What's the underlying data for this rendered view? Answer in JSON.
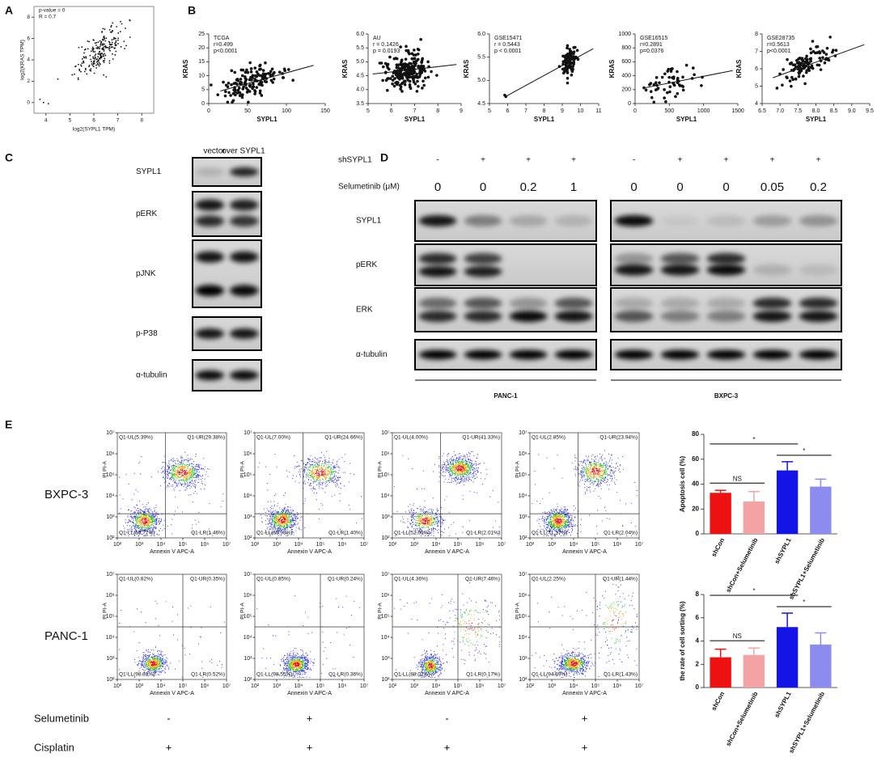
{
  "panels": {
    "A": {
      "label": "A",
      "texts": [
        "p-value = 0",
        "R = 0.7"
      ],
      "xlabel": "log2(SYPL1 TPM)",
      "ylabel": "log2(KRAS TPM)",
      "xlim": [
        3.5,
        8.5
      ],
      "xticks": [
        4,
        5,
        6,
        7,
        8
      ],
      "ylim": [
        -1,
        9
      ],
      "yticks": [
        0,
        2,
        4,
        6,
        8
      ]
    },
    "B": {
      "label": "B",
      "plots": [
        {
          "texts": [
            "TCGA",
            "r=0.499",
            "p<0.0001"
          ],
          "xlabel": "SYPL1",
          "ylabel": "KRAS",
          "xlim": [
            0,
            150
          ],
          "xticks": [
            0,
            50,
            100,
            150
          ],
          "ylim": [
            0,
            25
          ],
          "yticks": [
            0,
            5,
            10,
            15,
            20,
            25
          ]
        },
        {
          "texts": [
            "AU",
            "r = 0.1426",
            "p = 0.0193"
          ],
          "xlabel": "SYPL1",
          "ylabel": "KRAS",
          "xlim": [
            5,
            9
          ],
          "xticks": [
            5,
            6,
            7,
            8,
            9
          ],
          "ylim": [
            3.5,
            6
          ],
          "yticks": [
            3.5,
            {
              "value": 4,
              "label": "4.0"
            },
            4.5,
            {
              "value": 5,
              "label": "5.0"
            },
            5.5,
            {
              "value": 6,
              "label": "6.0"
            }
          ]
        },
        {
          "texts": [
            "GSE15471",
            "r = 0.5443",
            "p < 0.0001"
          ],
          "xlabel": "SYPL1",
          "ylabel": "KRAS",
          "xlim": [
            5,
            11
          ],
          "xticks": [
            5,
            6,
            7,
            8,
            9,
            10,
            11
          ],
          "ylim": [
            4.5,
            6
          ],
          "yticks": [
            4.5,
            {
              "value": 5,
              "label": "5.0"
            },
            5.5,
            {
              "value": 6,
              "label": "6.0"
            }
          ]
        },
        {
          "texts": [
            "GSE16515",
            "r=0.2891",
            "p=0.0376"
          ],
          "xlabel": "SYPL1",
          "ylabel": "KRAS",
          "xlim": [
            0,
            1500
          ],
          "xticks": [
            0,
            500,
            1000,
            1500
          ],
          "ylim": [
            0,
            1000
          ],
          "yticks": [
            0,
            200,
            400,
            600,
            800,
            1000
          ]
        },
        {
          "texts": [
            "GSE28735",
            "r=0.5613",
            "p<0.0001"
          ],
          "xlabel": "SYPL1",
          "ylabel": "KRAS",
          "xlim": [
            6.5,
            9.5
          ],
          "xticks": [
            6.5,
            {
              "value": 7,
              "label": "7.0"
            },
            7.5,
            {
              "value": 8,
              "label": "8.0"
            },
            8.5,
            {
              "value": 9,
              "label": "9.0"
            },
            9.5
          ],
          "ylim": [
            4,
            8
          ],
          "yticks": [
            4,
            5,
            6,
            7,
            8
          ]
        }
      ]
    },
    "C": {
      "label": "C",
      "columns": [
        "vector",
        "over SYPL1"
      ],
      "rows": [
        "SYPL1",
        "pERK",
        "pJNK",
        "p-P38",
        "α-tubulin"
      ]
    },
    "D": {
      "label": "D",
      "shsypl1_label": "shSYPL1",
      "shsypl1": [
        "-",
        "+",
        "+",
        "+",
        "-",
        "+",
        "+",
        "+",
        "+"
      ],
      "selumetinib_label": "Selumetinib (μM)",
      "selumetinib": [
        0,
        0,
        0.2,
        1,
        0,
        0,
        0,
        0.05,
        0.2
      ],
      "rows": [
        "SYPL1",
        "pERK",
        "ERK",
        "α-tubulin"
      ],
      "cell_lines": [
        "PANC-1",
        "BXPC-3"
      ]
    },
    "E": {
      "label": "E",
      "row_labels": [
        "BXPC-3",
        "PANC-1"
      ],
      "flow": {
        "xlabel": "Annexin V APC-A",
        "ylabel": "PI PI-A",
        "log": true,
        "lim": [
          100,
          10000000
        ],
        "ticks": [
          {
            "value": 100,
            "label": "10²"
          },
          {
            "value": 1000,
            "label": "10³"
          },
          {
            "value": 10000,
            "label": "10⁴"
          },
          {
            "value": 100000,
            "label": "10⁵"
          },
          {
            "value": 1000000,
            "label": "10⁶"
          },
          {
            "value": 10000000,
            "label": "10⁷"
          }
        ]
      },
      "plots": [
        [
          [
            "Q1-UL(5.39%)",
            "Q1-UR(29.38%)",
            "Q1-LL(63.77%)",
            "Q1-LR(1.46%)"
          ],
          [
            "Q1-UL(7.00%)",
            "Q1-UR(24.66%)",
            "Q1-LL(66.93%)",
            "Q1-LR(1.40%)"
          ],
          [
            "Q1-UL(4.00%)",
            "Q1-UR(41.33%)",
            "Q1-LL(52.66%)",
            "Q1-LR(2.01%)"
          ],
          [
            "Q1-UL(2.85%)",
            "Q1-UR(23.94%)",
            "Q1-LL(71.17%)",
            "Q1-LR(2.04%)"
          ]
        ],
        [
          [
            "Q1-UL(0.82%)",
            "Q1-UR(0.35%)",
            "Q1-LL(98.31%)",
            "Q1-LR(0.52%)"
          ],
          [
            "Q1-UL(0.85%)",
            "Q1-UR(0.24%)",
            "Q1-LL(98.55%)",
            "Q1-LR(0.36%)"
          ],
          [
            "Q1-UL(4.36%)",
            "Q1-UR(7.46%)",
            "Q1-LL(88.02%)",
            "Q1-LR(0.17%)"
          ],
          [
            "Q1-UL(2.25%)",
            "Q1-UR(1.44%)",
            "Q1-LL(94.89%)",
            "Q1-LR(1.43%)"
          ]
        ]
      ],
      "treatments": [
        {
          "name": "Selumetinib",
          "values": [
            "-",
            "+",
            "-",
            "+"
          ]
        },
        {
          "name": "Cisplatin",
          "values": [
            "+",
            "+",
            "+",
            "+"
          ]
        }
      ]
    }
  },
  "chart_data": [
    {
      "type": "bar",
      "ylabel": "Apoptosis cell (%)",
      "categories": [
        "shCon",
        "shCon+Selumetinib",
        "shSYPL1",
        "shSYPL1+Selumetinib"
      ],
      "values": [
        33,
        26,
        51,
        38
      ],
      "errors": [
        2,
        8,
        7,
        6
      ],
      "colors": [
        "#ee1111",
        "#f3a3a3",
        "#1414e6",
        "#8c8cf0"
      ],
      "ylim": [
        0,
        80
      ],
      "yticks": [
        0,
        20,
        40,
        60,
        80
      ],
      "annotations": [
        "NS",
        "*",
        "*"
      ]
    },
    {
      "type": "bar",
      "ylabel": "the rate of cell sorting (%)",
      "categories": [
        "shCon",
        "shCon+Selumetinib",
        "shSYPL1",
        "shSYPL1+Selumetinib"
      ],
      "values": [
        2.6,
        2.8,
        5.2,
        3.7
      ],
      "errors": [
        0.7,
        0.6,
        1.2,
        1.0
      ],
      "colors": [
        "#ee1111",
        "#f3a3a3",
        "#1414e6",
        "#8c8cf0"
      ],
      "ylim": [
        0,
        8
      ],
      "yticks": [
        0,
        2,
        4,
        6,
        8
      ],
      "annotations": [
        "NS",
        "*",
        "*"
      ]
    }
  ]
}
